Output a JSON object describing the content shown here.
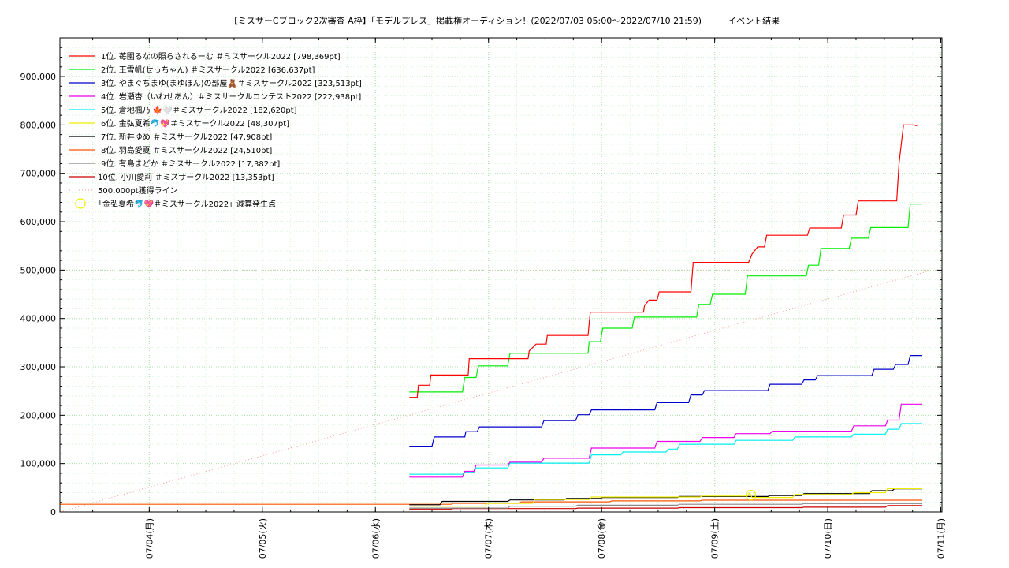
{
  "title": "【ミスサーCブロック2次審査 A枠】「モデルプレス」掲載権オーディション！(2022/07/03 05:00〜2022/07/10 21:59)　　　イベント結果",
  "chart_data": {
    "type": "line",
    "title": "【ミスサーCブロック2次審査 A枠】「モデルプレス」掲載権オーディション！(2022/07/03 05:00〜2022/07/10 21:59)　　　イベント結果",
    "xlabel": "",
    "ylabel": "",
    "x_unit": "days since 2022/07/03 05:00 (hours/24)",
    "xlim": [
      0,
      7.8
    ],
    "ylim": [
      0,
      980000
    ],
    "grid": true,
    "legend_position": "top-left",
    "x_ticks": [
      {
        "x": 0.79,
        "label": "07/04(月)"
      },
      {
        "x": 1.79,
        "label": "07/05(火)"
      },
      {
        "x": 2.79,
        "label": "07/06(水)"
      },
      {
        "x": 3.79,
        "label": "07/07(木)"
      },
      {
        "x": 4.79,
        "label": "07/08(金)"
      },
      {
        "x": 5.79,
        "label": "07/09(土)"
      },
      {
        "x": 6.79,
        "label": "07/10(日)"
      },
      {
        "x": 7.79,
        "label": "07/11(月)"
      }
    ],
    "y_ticks": [
      {
        "y": 0,
        "label": "0"
      },
      {
        "y": 100000,
        "label": "100,000"
      },
      {
        "y": 200000,
        "label": "200,000"
      },
      {
        "y": 300000,
        "label": "300,000"
      },
      {
        "y": 400000,
        "label": "400,000"
      },
      {
        "y": 500000,
        "label": "500,000"
      },
      {
        "y": 600000,
        "label": "600,000"
      },
      {
        "y": 700000,
        "label": "700,000"
      },
      {
        "y": 800000,
        "label": "800,000"
      },
      {
        "y": 900000,
        "label": "900,000"
      }
    ],
    "series": [
      {
        "name": "1位. 苺園るなの照らされるーむ ＃ミスサークル2022 [798,369pt]",
        "color": "#ff0000",
        "points": [
          [
            3.09,
            237000
          ],
          [
            3.16,
            237000
          ],
          [
            3.17,
            262000
          ],
          [
            3.27,
            262000
          ],
          [
            3.28,
            283000
          ],
          [
            3.61,
            283000
          ],
          [
            3.62,
            317000
          ],
          [
            3.91,
            317000
          ],
          [
            4.14,
            317000
          ],
          [
            4.15,
            333000
          ],
          [
            4.21,
            347000
          ],
          [
            4.3,
            347000
          ],
          [
            4.31,
            365000
          ],
          [
            4.67,
            365000
          ],
          [
            4.69,
            413000
          ],
          [
            5.16,
            413000
          ],
          [
            5.17,
            427000
          ],
          [
            5.21,
            438000
          ],
          [
            5.28,
            438000
          ],
          [
            5.3,
            455000
          ],
          [
            5.58,
            455000
          ],
          [
            5.6,
            516000
          ],
          [
            6.09,
            516000
          ],
          [
            6.12,
            533000
          ],
          [
            6.17,
            548000
          ],
          [
            6.23,
            548000
          ],
          [
            6.25,
            572000
          ],
          [
            6.61,
            572000
          ],
          [
            6.63,
            587000
          ],
          [
            6.91,
            587000
          ],
          [
            6.93,
            614000
          ],
          [
            7.04,
            614000
          ],
          [
            7.06,
            643000
          ],
          [
            7.4,
            643000
          ],
          [
            7.42,
            720000
          ],
          [
            7.46,
            800000
          ],
          [
            7.55,
            800000
          ],
          [
            7.58,
            798369
          ]
        ]
      },
      {
        "name": "2位. 王雪帆(せっちゃん) ＃ミスサークル2022 [636,637pt]",
        "color": "#00ee00",
        "points": [
          [
            3.09,
            248000
          ],
          [
            3.56,
            248000
          ],
          [
            3.58,
            278000
          ],
          [
            3.68,
            278000
          ],
          [
            3.7,
            302000
          ],
          [
            3.96,
            302000
          ],
          [
            3.98,
            328000
          ],
          [
            4.67,
            328000
          ],
          [
            4.68,
            352000
          ],
          [
            4.78,
            352000
          ],
          [
            4.8,
            380000
          ],
          [
            5.06,
            380000
          ],
          [
            5.08,
            403000
          ],
          [
            5.63,
            403000
          ],
          [
            5.65,
            429000
          ],
          [
            5.75,
            429000
          ],
          [
            5.77,
            450000
          ],
          [
            6.06,
            450000
          ],
          [
            6.08,
            488000
          ],
          [
            6.6,
            488000
          ],
          [
            6.62,
            510000
          ],
          [
            6.71,
            510000
          ],
          [
            6.73,
            545000
          ],
          [
            6.98,
            545000
          ],
          [
            7.0,
            566000
          ],
          [
            7.15,
            566000
          ],
          [
            7.17,
            588000
          ],
          [
            7.5,
            588000
          ],
          [
            7.52,
            636637
          ],
          [
            7.62,
            636637
          ]
        ]
      },
      {
        "name": "3位. やまぐちまゆ(まゆぼん)の部屋🧸＃ミスサークル2022 [323,513pt]",
        "color": "#0000cc",
        "points": [
          [
            3.09,
            136000
          ],
          [
            3.29,
            136000
          ],
          [
            3.31,
            155000
          ],
          [
            3.58,
            155000
          ],
          [
            3.59,
            166000
          ],
          [
            3.69,
            166000
          ],
          [
            3.71,
            176000
          ],
          [
            4.26,
            176000
          ],
          [
            4.28,
            189000
          ],
          [
            4.56,
            189000
          ],
          [
            4.58,
            201000
          ],
          [
            4.68,
            201000
          ],
          [
            4.7,
            211000
          ],
          [
            5.26,
            211000
          ],
          [
            5.28,
            226000
          ],
          [
            5.56,
            226000
          ],
          [
            5.58,
            242000
          ],
          [
            5.68,
            242000
          ],
          [
            5.7,
            251000
          ],
          [
            6.26,
            251000
          ],
          [
            6.28,
            264000
          ],
          [
            6.56,
            264000
          ],
          [
            6.58,
            273000
          ],
          [
            6.68,
            273000
          ],
          [
            6.7,
            282000
          ],
          [
            7.18,
            282000
          ],
          [
            7.2,
            295000
          ],
          [
            7.37,
            295000
          ],
          [
            7.39,
            305000
          ],
          [
            7.5,
            305000
          ],
          [
            7.52,
            323513
          ],
          [
            7.62,
            323513
          ]
        ]
      },
      {
        "name": "4位. 岩瀬杏（いわせあん）＃ミスサークルコンテスト2022 [222,938pt]",
        "color": "#ee00ee",
        "points": [
          [
            3.09,
            72000
          ],
          [
            3.56,
            72000
          ],
          [
            3.58,
            84000
          ],
          [
            3.66,
            84000
          ],
          [
            3.68,
            97000
          ],
          [
            3.96,
            97000
          ],
          [
            3.98,
            103000
          ],
          [
            4.26,
            103000
          ],
          [
            4.28,
            111000
          ],
          [
            4.68,
            111000
          ],
          [
            4.7,
            132000
          ],
          [
            5.26,
            132000
          ],
          [
            5.28,
            146000
          ],
          [
            5.66,
            146000
          ],
          [
            5.68,
            154000
          ],
          [
            5.96,
            154000
          ],
          [
            5.98,
            162000
          ],
          [
            6.28,
            162000
          ],
          [
            6.3,
            167000
          ],
          [
            7.0,
            167000
          ],
          [
            7.02,
            178000
          ],
          [
            7.3,
            178000
          ],
          [
            7.32,
            190000
          ],
          [
            7.42,
            190000
          ],
          [
            7.44,
            222938
          ],
          [
            7.62,
            222938
          ]
        ]
      },
      {
        "name": "5位. 倉地楓乃 🍁🤍＃ミスサークル2022 [182,620pt]",
        "color": "#00eeee",
        "points": [
          [
            3.09,
            78000
          ],
          [
            3.56,
            78000
          ],
          [
            3.58,
            82000
          ],
          [
            3.66,
            82000
          ],
          [
            3.68,
            91000
          ],
          [
            3.96,
            91000
          ],
          [
            3.98,
            101000
          ],
          [
            4.68,
            101000
          ],
          [
            4.7,
            118000
          ],
          [
            4.96,
            118000
          ],
          [
            4.98,
            124000
          ],
          [
            5.36,
            124000
          ],
          [
            5.38,
            130000
          ],
          [
            5.46,
            130000
          ],
          [
            5.48,
            140000
          ],
          [
            5.96,
            140000
          ],
          [
            5.98,
            148000
          ],
          [
            6.48,
            148000
          ],
          [
            6.5,
            155000
          ],
          [
            7.0,
            155000
          ],
          [
            7.02,
            161000
          ],
          [
            7.3,
            161000
          ],
          [
            7.32,
            171000
          ],
          [
            7.42,
            171000
          ],
          [
            7.44,
            182620
          ],
          [
            7.62,
            182620
          ]
        ]
      },
      {
        "name": "6位. 金弘夏希🐬💖＃ミスサークル2022 [48,307pt]",
        "color": "#eeee00",
        "points": [
          [
            3.09,
            12000
          ],
          [
            3.76,
            12000
          ],
          [
            3.78,
            18000
          ],
          [
            4.18,
            18000
          ],
          [
            4.2,
            26000
          ],
          [
            4.68,
            26000
          ],
          [
            4.7,
            31000
          ],
          [
            5.66,
            31000
          ],
          [
            5.68,
            33000
          ],
          [
            6.08,
            33000
          ],
          [
            6.1,
            40000
          ],
          [
            6.12,
            30000
          ],
          [
            6.48,
            30000
          ],
          [
            6.5,
            36000
          ],
          [
            7.0,
            36000
          ],
          [
            7.02,
            40000
          ],
          [
            7.3,
            40000
          ],
          [
            7.32,
            48307
          ],
          [
            7.62,
            48307
          ]
        ]
      },
      {
        "name": "7位. 新井ゆめ ＃ミスサークル2022 [47,908pt]",
        "color": "#000000",
        "points": [
          [
            3.09,
            15000
          ],
          [
            3.36,
            15000
          ],
          [
            3.38,
            22000
          ],
          [
            3.96,
            22000
          ],
          [
            3.98,
            25000
          ],
          [
            4.46,
            25000
          ],
          [
            4.48,
            28000
          ],
          [
            4.78,
            28000
          ],
          [
            4.8,
            30000
          ],
          [
            5.46,
            30000
          ],
          [
            5.48,
            32000
          ],
          [
            6.26,
            32000
          ],
          [
            6.28,
            34000
          ],
          [
            6.56,
            34000
          ],
          [
            6.58,
            38000
          ],
          [
            7.16,
            38000
          ],
          [
            7.18,
            44000
          ],
          [
            7.36,
            44000
          ],
          [
            7.38,
            47908
          ],
          [
            7.62,
            47908
          ]
        ]
      },
      {
        "name": "8位. 羽島愛夏 ＃ミスサークル2022 [24,510pt]",
        "color": "#ff5500",
        "points": [
          [
            0.0,
            16000
          ],
          [
            3.09,
            16000
          ],
          [
            3.46,
            16000
          ],
          [
            3.48,
            18000
          ],
          [
            4.06,
            18000
          ],
          [
            4.08,
            21000
          ],
          [
            4.86,
            21000
          ],
          [
            4.88,
            23000
          ],
          [
            5.66,
            23000
          ],
          [
            5.68,
            24510
          ],
          [
            7.62,
            24510
          ]
        ]
      },
      {
        "name": "9位. 有島まどか ＃ミスサークル2022 [17,382pt]",
        "color": "#888888",
        "points": [
          [
            3.09,
            8000
          ],
          [
            3.96,
            8000
          ],
          [
            3.98,
            12000
          ],
          [
            4.56,
            12000
          ],
          [
            4.58,
            14000
          ],
          [
            5.46,
            14000
          ],
          [
            5.48,
            16000
          ],
          [
            6.56,
            16000
          ],
          [
            6.58,
            17382
          ],
          [
            7.62,
            17382
          ]
        ]
      },
      {
        "name": "10位. 小川愛莉 ＃ミスサークル2022 [13,353pt]",
        "color": "#cc0000",
        "points": [
          [
            3.09,
            6000
          ],
          [
            3.46,
            6000
          ],
          [
            3.48,
            7000
          ],
          [
            4.56,
            7000
          ],
          [
            4.58,
            8000
          ],
          [
            5.46,
            8000
          ],
          [
            5.48,
            9000
          ],
          [
            6.56,
            9000
          ],
          [
            6.58,
            10000
          ],
          [
            7.3,
            10000
          ],
          [
            7.32,
            13353
          ],
          [
            7.62,
            13353
          ]
        ]
      }
    ],
    "reference_line": {
      "name": "500,000pt獲得ライン",
      "color": "#ff9999",
      "from": [
        0,
        0
      ],
      "to": [
        7.71,
        500000
      ]
    },
    "marker": {
      "name": "「金弘夏希🐬💖＃ミスサークル2022」減算発生点",
      "color": "#eeee00",
      "x": 6.11,
      "y": 35000
    }
  }
}
